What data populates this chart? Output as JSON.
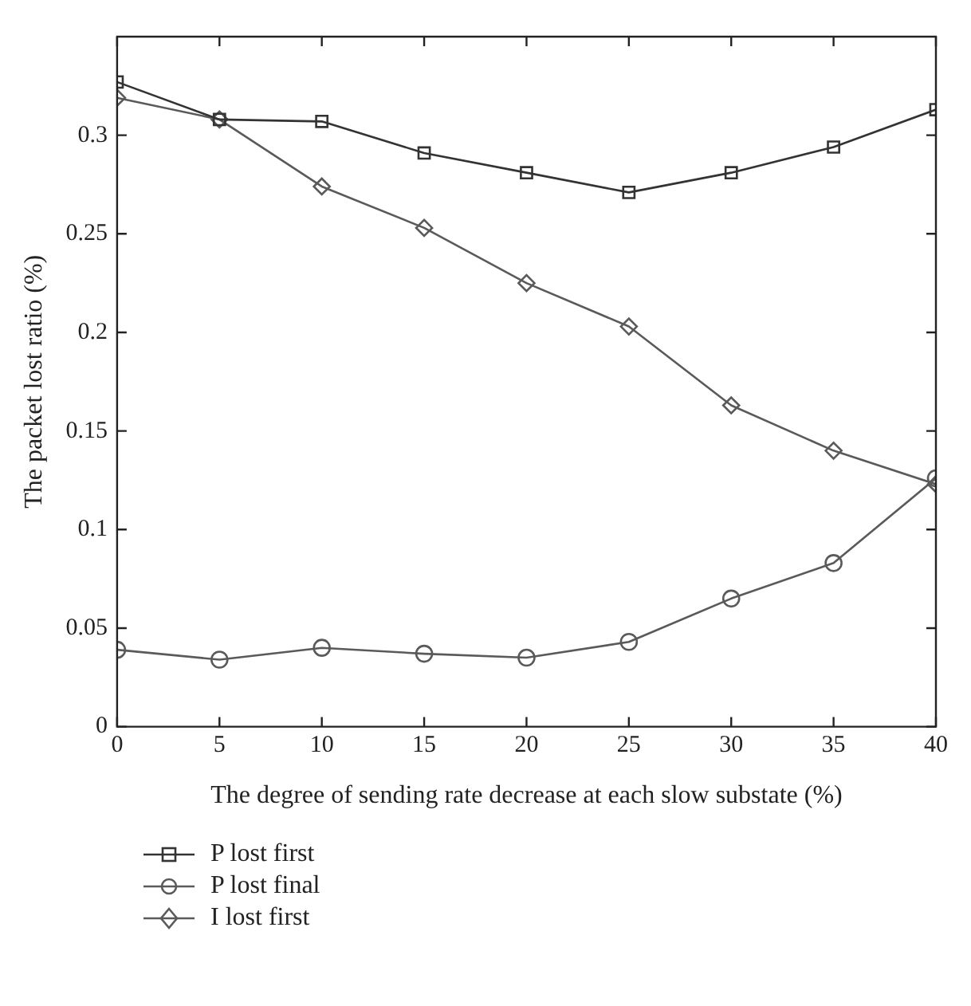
{
  "chart_data": {
    "type": "line",
    "xlabel": "The degree of sending rate decrease at each slow substate (%)",
    "ylabel": "The packet lost ratio (%)",
    "x": [
      0,
      5,
      10,
      15,
      20,
      25,
      30,
      35,
      40
    ],
    "series": [
      {
        "name": "P lost first",
        "color": "#333333",
        "marker": "square",
        "values": [
          0.327,
          0.308,
          0.307,
          0.291,
          0.281,
          0.271,
          0.281,
          0.294,
          0.313
        ]
      },
      {
        "name": "P lost final",
        "color": "#5a5a5a",
        "marker": "circle",
        "values": [
          0.039,
          0.034,
          0.04,
          0.037,
          0.035,
          0.043,
          0.065,
          0.083,
          0.126
        ]
      },
      {
        "name": "I lost first",
        "color": "#5a5a5a",
        "marker": "diamond",
        "values": [
          0.319,
          0.308,
          0.274,
          0.253,
          0.225,
          0.203,
          0.163,
          0.14,
          0.123
        ]
      }
    ],
    "xlim": [
      0,
      40
    ],
    "xticks": [
      0,
      5,
      10,
      15,
      20,
      25,
      30,
      35,
      40
    ],
    "ylim": [
      0,
      0.35
    ],
    "yticks": [
      0,
      0.05,
      0.1,
      0.15,
      0.2,
      0.25,
      0.3
    ],
    "grid": false,
    "legend": "bottom left",
    "line_style": "solid"
  }
}
